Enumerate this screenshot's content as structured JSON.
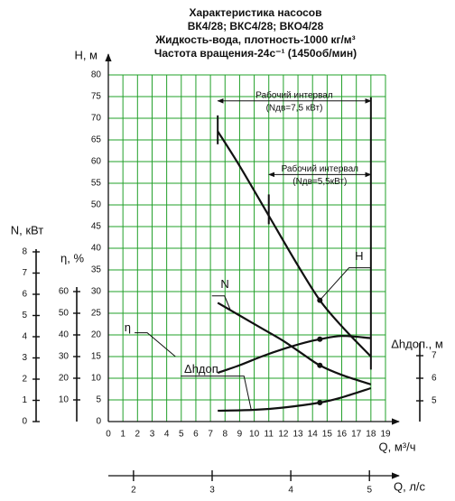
{
  "chart_data": {
    "type": "line",
    "title": [
      "Характеристика насосов",
      "ВК4/28; ВКС4/28; ВКО4/28",
      "Жидкость-вода, плотность-1000 кг/м³",
      "Частота вращения-24с⁻¹ (1450об/мин)"
    ],
    "xlabel": "Q, м³/ч",
    "ylabel": "H, м",
    "xlim": [
      0,
      19
    ],
    "xticks": [
      0,
      1,
      2,
      3,
      4,
      5,
      6,
      7,
      8,
      9,
      10,
      11,
      12,
      13,
      14,
      15,
      16,
      17,
      18,
      19
    ],
    "ylim": [
      0,
      80
    ],
    "yticks": [
      0,
      5,
      10,
      15,
      20,
      25,
      30,
      35,
      40,
      45,
      50,
      55,
      60,
      65,
      70,
      75,
      80
    ],
    "grid": true,
    "grid_color": "#22a02a",
    "n_axis": {
      "label": "N, кВт",
      "lim": [
        0,
        8
      ],
      "ticks": [
        0,
        1,
        2,
        3,
        4,
        5,
        6,
        7,
        8
      ]
    },
    "eta_axis": {
      "label": "η, %",
      "lim": [
        0,
        60
      ],
      "ticks": [
        10,
        20,
        30,
        40,
        50,
        60
      ]
    },
    "dh_axis": {
      "label": "Δhдоп., м",
      "lim": [
        5,
        7
      ],
      "ticks": [
        5,
        6,
        7
      ]
    },
    "q2_axis": {
      "label": "Q, л/с",
      "lim": [
        1.68,
        5.25
      ],
      "ticks": [
        2,
        3,
        4,
        5
      ]
    },
    "series": [
      {
        "name": "H",
        "axis": "y",
        "color": "#111111",
        "x": [
          7.5,
          9,
          11,
          13,
          14.5,
          16,
          18
        ],
        "values": [
          67,
          59,
          47.5,
          36,
          28,
          22,
          15
        ],
        "marker": {
          "x": 14.5,
          "value": 28
        }
      },
      {
        "name": "N",
        "axis": "n",
        "color": "#111111",
        "x": [
          7.5,
          9,
          10.5,
          12,
          13.5,
          14.5,
          16,
          18
        ],
        "values": [
          5.6,
          5.0,
          4.4,
          3.8,
          3.1,
          2.65,
          2.2,
          1.75
        ],
        "marker": {
          "x": 14.5,
          "value": 2.65
        }
      },
      {
        "name": "η",
        "axis": "eta",
        "color": "#111111",
        "x": [
          7.5,
          9,
          10.5,
          12,
          13.5,
          14.5,
          16,
          18
        ],
        "values": [
          22.5,
          26,
          30,
          33.5,
          36.5,
          38,
          39.5,
          38.5
        ],
        "marker": {
          "x": 14.5,
          "value": 38
        }
      },
      {
        "name": "Δhдоп.",
        "axis": "dh",
        "color": "#111111",
        "x": [
          7.5,
          10,
          12,
          14.5,
          16,
          18
        ],
        "values": [
          4.56,
          4.6,
          4.7,
          4.92,
          5.15,
          5.56
        ],
        "marker": {
          "x": 14.5,
          "value": 4.92
        }
      }
    ],
    "intervals": [
      {
        "label": "Рабочий интервал",
        "sublabel": "(Nдв=7,5 кВт)",
        "from": 7.5,
        "to": 18,
        "level": 74
      },
      {
        "label": "Рабочий интервал",
        "sublabel": "(Nдв=5,5кВт)",
        "from": 11,
        "to": 18,
        "level": 57
      }
    ]
  }
}
